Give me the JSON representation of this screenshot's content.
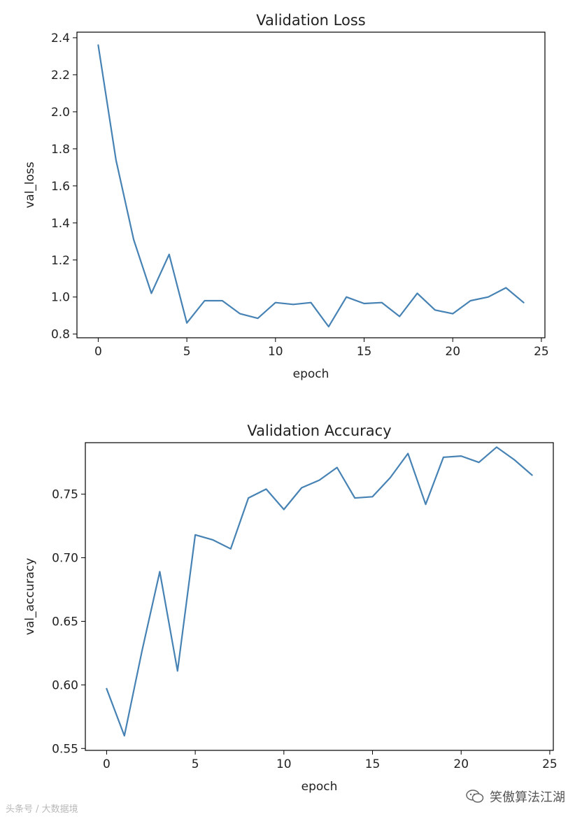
{
  "chart_data": [
    {
      "type": "line",
      "title": "Validation Loss",
      "xlabel": "epoch",
      "ylabel": "val_loss",
      "xlim": [
        -1.2,
        25.2
      ],
      "ylim": [
        0.78,
        2.43
      ],
      "xticks": [
        0,
        5,
        10,
        15,
        20,
        25
      ],
      "xtick_labels": [
        "0",
        "5",
        "10",
        "15",
        "20",
        "25"
      ],
      "yticks": [
        0.8,
        1.0,
        1.2,
        1.4,
        1.6,
        1.8,
        2.0,
        2.2,
        2.4
      ],
      "ytick_labels": [
        "0.8",
        "1.0",
        "1.2",
        "1.4",
        "1.6",
        "1.8",
        "2.0",
        "2.2",
        "2.4"
      ],
      "grid": false,
      "color": "#4682b4",
      "x": [
        0,
        1,
        2,
        3,
        4,
        5,
        6,
        7,
        8,
        9,
        10,
        11,
        12,
        13,
        14,
        15,
        16,
        17,
        18,
        19,
        20,
        21,
        22,
        23,
        24
      ],
      "y": [
        2.36,
        1.74,
        1.31,
        1.02,
        1.23,
        0.86,
        0.98,
        0.98,
        0.91,
        0.885,
        0.97,
        0.96,
        0.97,
        0.84,
        1.0,
        0.965,
        0.97,
        0.895,
        1.02,
        0.93,
        0.91,
        0.98,
        1.0,
        1.05,
        0.97
      ]
    },
    {
      "type": "line",
      "title": "Validation Accuracy",
      "xlabel": "epoch",
      "ylabel": "val_accuracy",
      "xlim": [
        -1.2,
        25.2
      ],
      "ylim": [
        0.5485,
        0.7905
      ],
      "xticks": [
        0,
        5,
        10,
        15,
        20,
        25
      ],
      "xtick_labels": [
        "0",
        "5",
        "10",
        "15",
        "20",
        "25"
      ],
      "yticks": [
        0.55,
        0.6,
        0.65,
        0.7,
        0.75
      ],
      "ytick_labels": [
        "0.55",
        "0.60",
        "0.65",
        "0.70",
        "0.75"
      ],
      "grid": false,
      "color": "#4682b4",
      "x": [
        0,
        1,
        2,
        3,
        4,
        5,
        6,
        7,
        8,
        9,
        10,
        11,
        12,
        13,
        14,
        15,
        16,
        17,
        18,
        19,
        20,
        21,
        22,
        23,
        24
      ],
      "y": [
        0.597,
        0.56,
        0.627,
        0.689,
        0.611,
        0.718,
        0.714,
        0.707,
        0.747,
        0.754,
        0.738,
        0.755,
        0.761,
        0.771,
        0.747,
        0.748,
        0.763,
        0.782,
        0.742,
        0.779,
        0.78,
        0.775,
        0.787,
        0.777,
        0.765
      ]
    }
  ],
  "watermark": {
    "left_text": "头条号 / 大数据境",
    "right_text": "笑傲算法江湖"
  }
}
